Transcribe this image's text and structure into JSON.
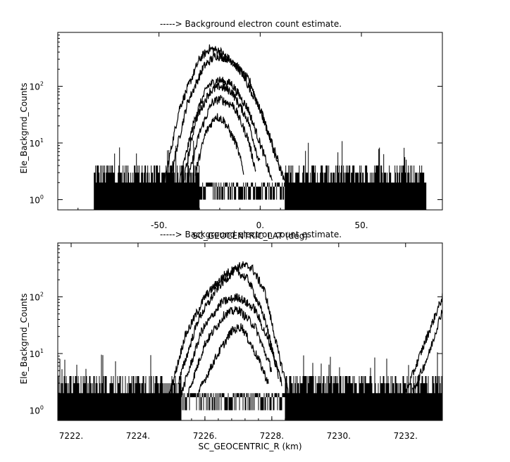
{
  "chart_data": [
    {
      "type": "line",
      "title": "-----> Background electron count estimate.",
      "xlabel": "SC_GEOCENTRIC_LAT (deg)",
      "ylabel": "Ele_Backgrnd_Counts",
      "xlim": [
        -100,
        90
      ],
      "ylim_log10": [
        -0.18,
        2.95
      ],
      "yscale": "log",
      "x_ticks": [
        "-50.",
        "0.",
        "50."
      ],
      "x_tick_values": [
        -50,
        0,
        50
      ],
      "y_ticks": [
        {
          "base": "10",
          "exp": "0"
        },
        {
          "base": "10",
          "exp": "1"
        },
        {
          "base": "10",
          "exp": "2"
        }
      ],
      "noise_band": {
        "x_range": [
          -82,
          82
        ],
        "gap_range": [
          -30,
          12
        ],
        "floor": 1,
        "ceiling": 4
      },
      "series": [
        {
          "values": [
            [
              -48,
              1.5
            ],
            [
              -40,
              40
            ],
            [
              -30,
              300
            ],
            [
              -25,
              460
            ],
            [
              -20,
              420
            ],
            [
              -10,
              200
            ],
            [
              0,
              40
            ],
            [
              8,
              6
            ],
            [
              12,
              2
            ]
          ]
        },
        {
          "values": [
            [
              -44,
              3
            ],
            [
              -36,
              50
            ],
            [
              -28,
              220
            ],
            [
              -22,
              350
            ],
            [
              -15,
              300
            ],
            [
              -5,
              120
            ],
            [
              4,
              15
            ],
            [
              10,
              3
            ]
          ]
        },
        {
          "values": [
            [
              -40,
              2
            ],
            [
              -32,
              30
            ],
            [
              -26,
              100
            ],
            [
              -21,
              130
            ],
            [
              -14,
              110
            ],
            [
              -6,
              40
            ],
            [
              2,
              6
            ],
            [
              6,
              2
            ]
          ]
        },
        {
          "values": [
            [
              -38,
              2
            ],
            [
              -32,
              25
            ],
            [
              -25,
              80
            ],
            [
              -20,
              100
            ],
            [
              -14,
              80
            ],
            [
              -6,
              25
            ],
            [
              0,
              4
            ]
          ]
        },
        {
          "values": [
            [
              -36,
              2
            ],
            [
              -30,
              15
            ],
            [
              -24,
              50
            ],
            [
              -20,
              60
            ],
            [
              -13,
              45
            ],
            [
              -6,
              12
            ],
            [
              -2,
              3
            ]
          ]
        },
        {
          "values": [
            [
              -32,
              3
            ],
            [
              -27,
              15
            ],
            [
              -22,
              30
            ],
            [
              -18,
              25
            ],
            [
              -12,
              10
            ],
            [
              -8,
              3
            ]
          ]
        }
      ]
    },
    {
      "type": "line",
      "title": "-----> Background electron count estimate.",
      "xlabel": "SC_GEOCENTRIC_R (km)",
      "ylabel": "Ele_Backgrnd_Counts",
      "xlim": [
        7221.6,
        7233.1
      ],
      "ylim_log10": [
        -0.18,
        2.95
      ],
      "yscale": "log",
      "x_ticks": [
        "7222.",
        "7224.",
        "7226.",
        "7228.",
        "7230.",
        "7232."
      ],
      "x_tick_values": [
        7222,
        7224,
        7226,
        7228,
        7230,
        7232
      ],
      "y_ticks": [
        {
          "base": "10",
          "exp": "0"
        },
        {
          "base": "10",
          "exp": "1"
        },
        {
          "base": "10",
          "exp": "2"
        }
      ],
      "noise_band": {
        "x_range": [
          7221.6,
          7233.1
        ],
        "gap_range": [
          7225.3,
          7228.4
        ],
        "floor": 1,
        "ceiling": 4
      },
      "series": [
        {
          "values": [
            [
              7224.9,
              1.5
            ],
            [
              7225.4,
              20
            ],
            [
              7226.0,
              100
            ],
            [
              7226.6,
              250
            ],
            [
              7227.1,
              360
            ],
            [
              7227.4,
              330
            ],
            [
              7227.8,
              120
            ],
            [
              7228.2,
              10
            ],
            [
              7228.5,
              2
            ]
          ]
        },
        {
          "values": [
            [
              7225.2,
              3
            ],
            [
              7225.8,
              40
            ],
            [
              7226.4,
              150
            ],
            [
              7226.9,
              300
            ],
            [
              7227.3,
              200
            ],
            [
              7227.8,
              40
            ],
            [
              7228.2,
              4
            ]
          ]
        },
        {
          "values": [
            [
              7225.3,
              2
            ],
            [
              7225.9,
              25
            ],
            [
              7226.5,
              80
            ],
            [
              7227.0,
              100
            ],
            [
              7227.5,
              60
            ],
            [
              7228.0,
              12
            ],
            [
              7228.3,
              3
            ]
          ]
        },
        {
          "values": [
            [
              7225.5,
              2
            ],
            [
              7226.0,
              15
            ],
            [
              7226.6,
              50
            ],
            [
              7227.0,
              60
            ],
            [
              7227.5,
              30
            ],
            [
              7228.0,
              5
            ]
          ]
        },
        {
          "values": [
            [
              7225.8,
              2
            ],
            [
              7226.3,
              8
            ],
            [
              7226.8,
              25
            ],
            [
              7227.1,
              30
            ],
            [
              7227.6,
              8
            ],
            [
              7227.9,
              3
            ]
          ]
        },
        {
          "values": [
            [
              7232.0,
              2
            ],
            [
              7232.5,
              12
            ],
            [
              7233.1,
              100
            ]
          ]
        },
        {
          "values": [
            [
              7232.2,
              2
            ],
            [
              7232.7,
              10
            ],
            [
              7233.1,
              60
            ]
          ]
        }
      ]
    }
  ]
}
